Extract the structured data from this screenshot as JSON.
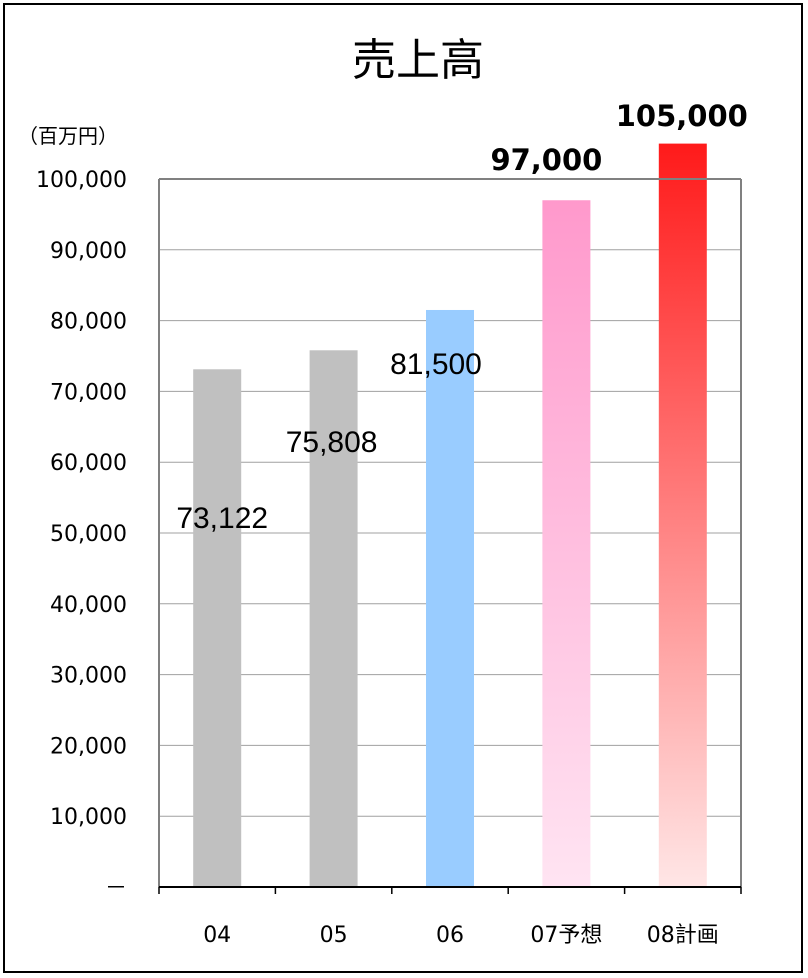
{
  "chart_data": {
    "type": "bar",
    "title": "売上高",
    "unit_label": "（百万円）",
    "categories": [
      "04",
      "05",
      "06",
      "07予想",
      "08計画"
    ],
    "values": [
      73122,
      75808,
      81500,
      97000,
      105000
    ],
    "data_labels": [
      "73,122",
      "75,808",
      "81,500",
      "97,000",
      "105,000"
    ],
    "ylim": [
      0,
      100000
    ],
    "yticks": [
      0,
      10000,
      20000,
      30000,
      40000,
      50000,
      60000,
      70000,
      80000,
      90000,
      100000
    ],
    "ytick_labels": [
      "－",
      "10,000",
      "20,000",
      "30,000",
      "40,000",
      "50,000",
      "60,000",
      "70,000",
      "80,000",
      "90,000",
      "100,000"
    ],
    "grid": true,
    "bar_colors": [
      "#c0c0c0",
      "#c0c0c0",
      "#99ccff",
      "gradient-pink",
      "gradient-red"
    ]
  }
}
